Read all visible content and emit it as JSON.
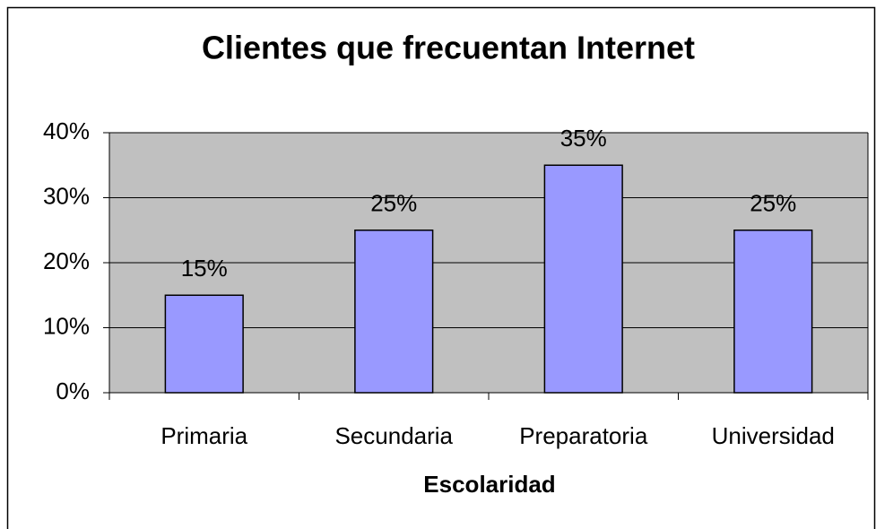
{
  "chart_data": {
    "type": "bar",
    "title": "Clientes que frecuentan Internet",
    "x_label": "Escolaridad",
    "categories": [
      "Primaria",
      "Secundaria",
      "Preparatoria",
      "Universidad"
    ],
    "values": [
      15,
      25,
      35,
      25
    ],
    "value_labels": [
      "15%",
      "25%",
      "35%",
      "25%"
    ],
    "color": "#9999ff",
    "ylim": [
      0,
      40
    ],
    "yticks": [
      {
        "value": 0,
        "label": "0%"
      },
      {
        "value": 10,
        "label": "10%"
      },
      {
        "value": 20,
        "label": "20%"
      },
      {
        "value": 30,
        "label": "30%"
      },
      {
        "value": 40,
        "label": "40%"
      }
    ],
    "grid": true
  }
}
